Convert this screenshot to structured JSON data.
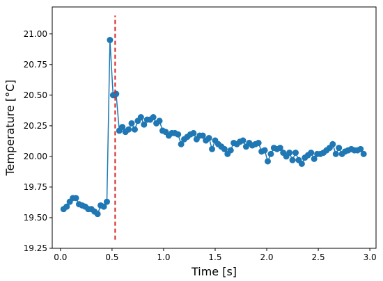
{
  "chart_data": {
    "type": "line",
    "xlabel": "Time [s]",
    "ylabel": "Temperature [°C]",
    "xlim": [
      -0.08,
      3.06
    ],
    "ylim": [
      19.25,
      21.22
    ],
    "xticks": [
      0.0,
      0.5,
      1.0,
      1.5,
      2.0,
      2.5,
      3.0
    ],
    "xtick_labels": [
      "0.0",
      "0.5",
      "1.0",
      "1.5",
      "2.0",
      "2.5",
      "3.0"
    ],
    "yticks": [
      19.25,
      19.5,
      19.75,
      20.0,
      20.25,
      20.5,
      20.75,
      21.0
    ],
    "ytick_labels": [
      "19.25",
      "19.50",
      "19.75",
      "20.00",
      "20.25",
      "20.50",
      "20.75",
      "21.00"
    ],
    "grid": false,
    "marker": "circle",
    "series": [
      {
        "color": "#1f77b4",
        "x": [
          0.03,
          0.06,
          0.09,
          0.12,
          0.15,
          0.18,
          0.21,
          0.24,
          0.27,
          0.3,
          0.33,
          0.36,
          0.39,
          0.42,
          0.45,
          0.48,
          0.51,
          0.54,
          0.57,
          0.6,
          0.63,
          0.66,
          0.69,
          0.72,
          0.75,
          0.78,
          0.81,
          0.84,
          0.87,
          0.9,
          0.93,
          0.96,
          0.99,
          1.02,
          1.05,
          1.08,
          1.11,
          1.14,
          1.17,
          1.2,
          1.23,
          1.26,
          1.29,
          1.32,
          1.35,
          1.38,
          1.41,
          1.44,
          1.47,
          1.5,
          1.53,
          1.56,
          1.59,
          1.62,
          1.65,
          1.68,
          1.71,
          1.74,
          1.77,
          1.8,
          1.83,
          1.86,
          1.89,
          1.92,
          1.95,
          1.98,
          2.01,
          2.04,
          2.07,
          2.1,
          2.13,
          2.16,
          2.19,
          2.22,
          2.25,
          2.28,
          2.31,
          2.34,
          2.37,
          2.4,
          2.43,
          2.46,
          2.49,
          2.52,
          2.55,
          2.58,
          2.61,
          2.64,
          2.67,
          2.7,
          2.73,
          2.76,
          2.79,
          2.82,
          2.85,
          2.88,
          2.91,
          2.94
        ],
        "y": [
          19.57,
          19.59,
          19.63,
          19.66,
          19.66,
          19.61,
          19.6,
          19.59,
          19.57,
          19.57,
          19.55,
          19.53,
          19.6,
          19.59,
          19.63,
          20.95,
          20.5,
          20.51,
          20.21,
          20.24,
          20.2,
          20.22,
          20.27,
          20.22,
          20.29,
          20.32,
          20.26,
          20.3,
          20.3,
          20.32,
          20.27,
          20.29,
          20.21,
          20.2,
          20.17,
          20.19,
          20.19,
          20.18,
          20.1,
          20.14,
          20.16,
          20.18,
          20.19,
          20.14,
          20.17,
          20.17,
          20.13,
          20.15,
          20.06,
          20.13,
          20.1,
          20.08,
          20.06,
          20.02,
          20.05,
          20.11,
          20.1,
          20.12,
          20.13,
          20.08,
          20.11,
          20.09,
          20.1,
          20.11,
          20.04,
          20.05,
          19.96,
          20.02,
          20.07,
          20.06,
          20.07,
          20.03,
          20.0,
          20.03,
          19.97,
          20.03,
          19.97,
          19.94,
          19.99,
          20.01,
          20.03,
          19.98,
          20.02,
          20.02,
          20.03,
          20.05,
          20.07,
          20.1,
          20.02,
          20.07,
          20.02,
          20.04,
          20.05,
          20.06,
          20.05,
          20.05,
          20.06,
          20.02
        ]
      }
    ],
    "vline": {
      "x": 0.53,
      "color": "#d62728",
      "style": "dashed",
      "y_range": [
        19.32,
        21.15
      ]
    }
  }
}
